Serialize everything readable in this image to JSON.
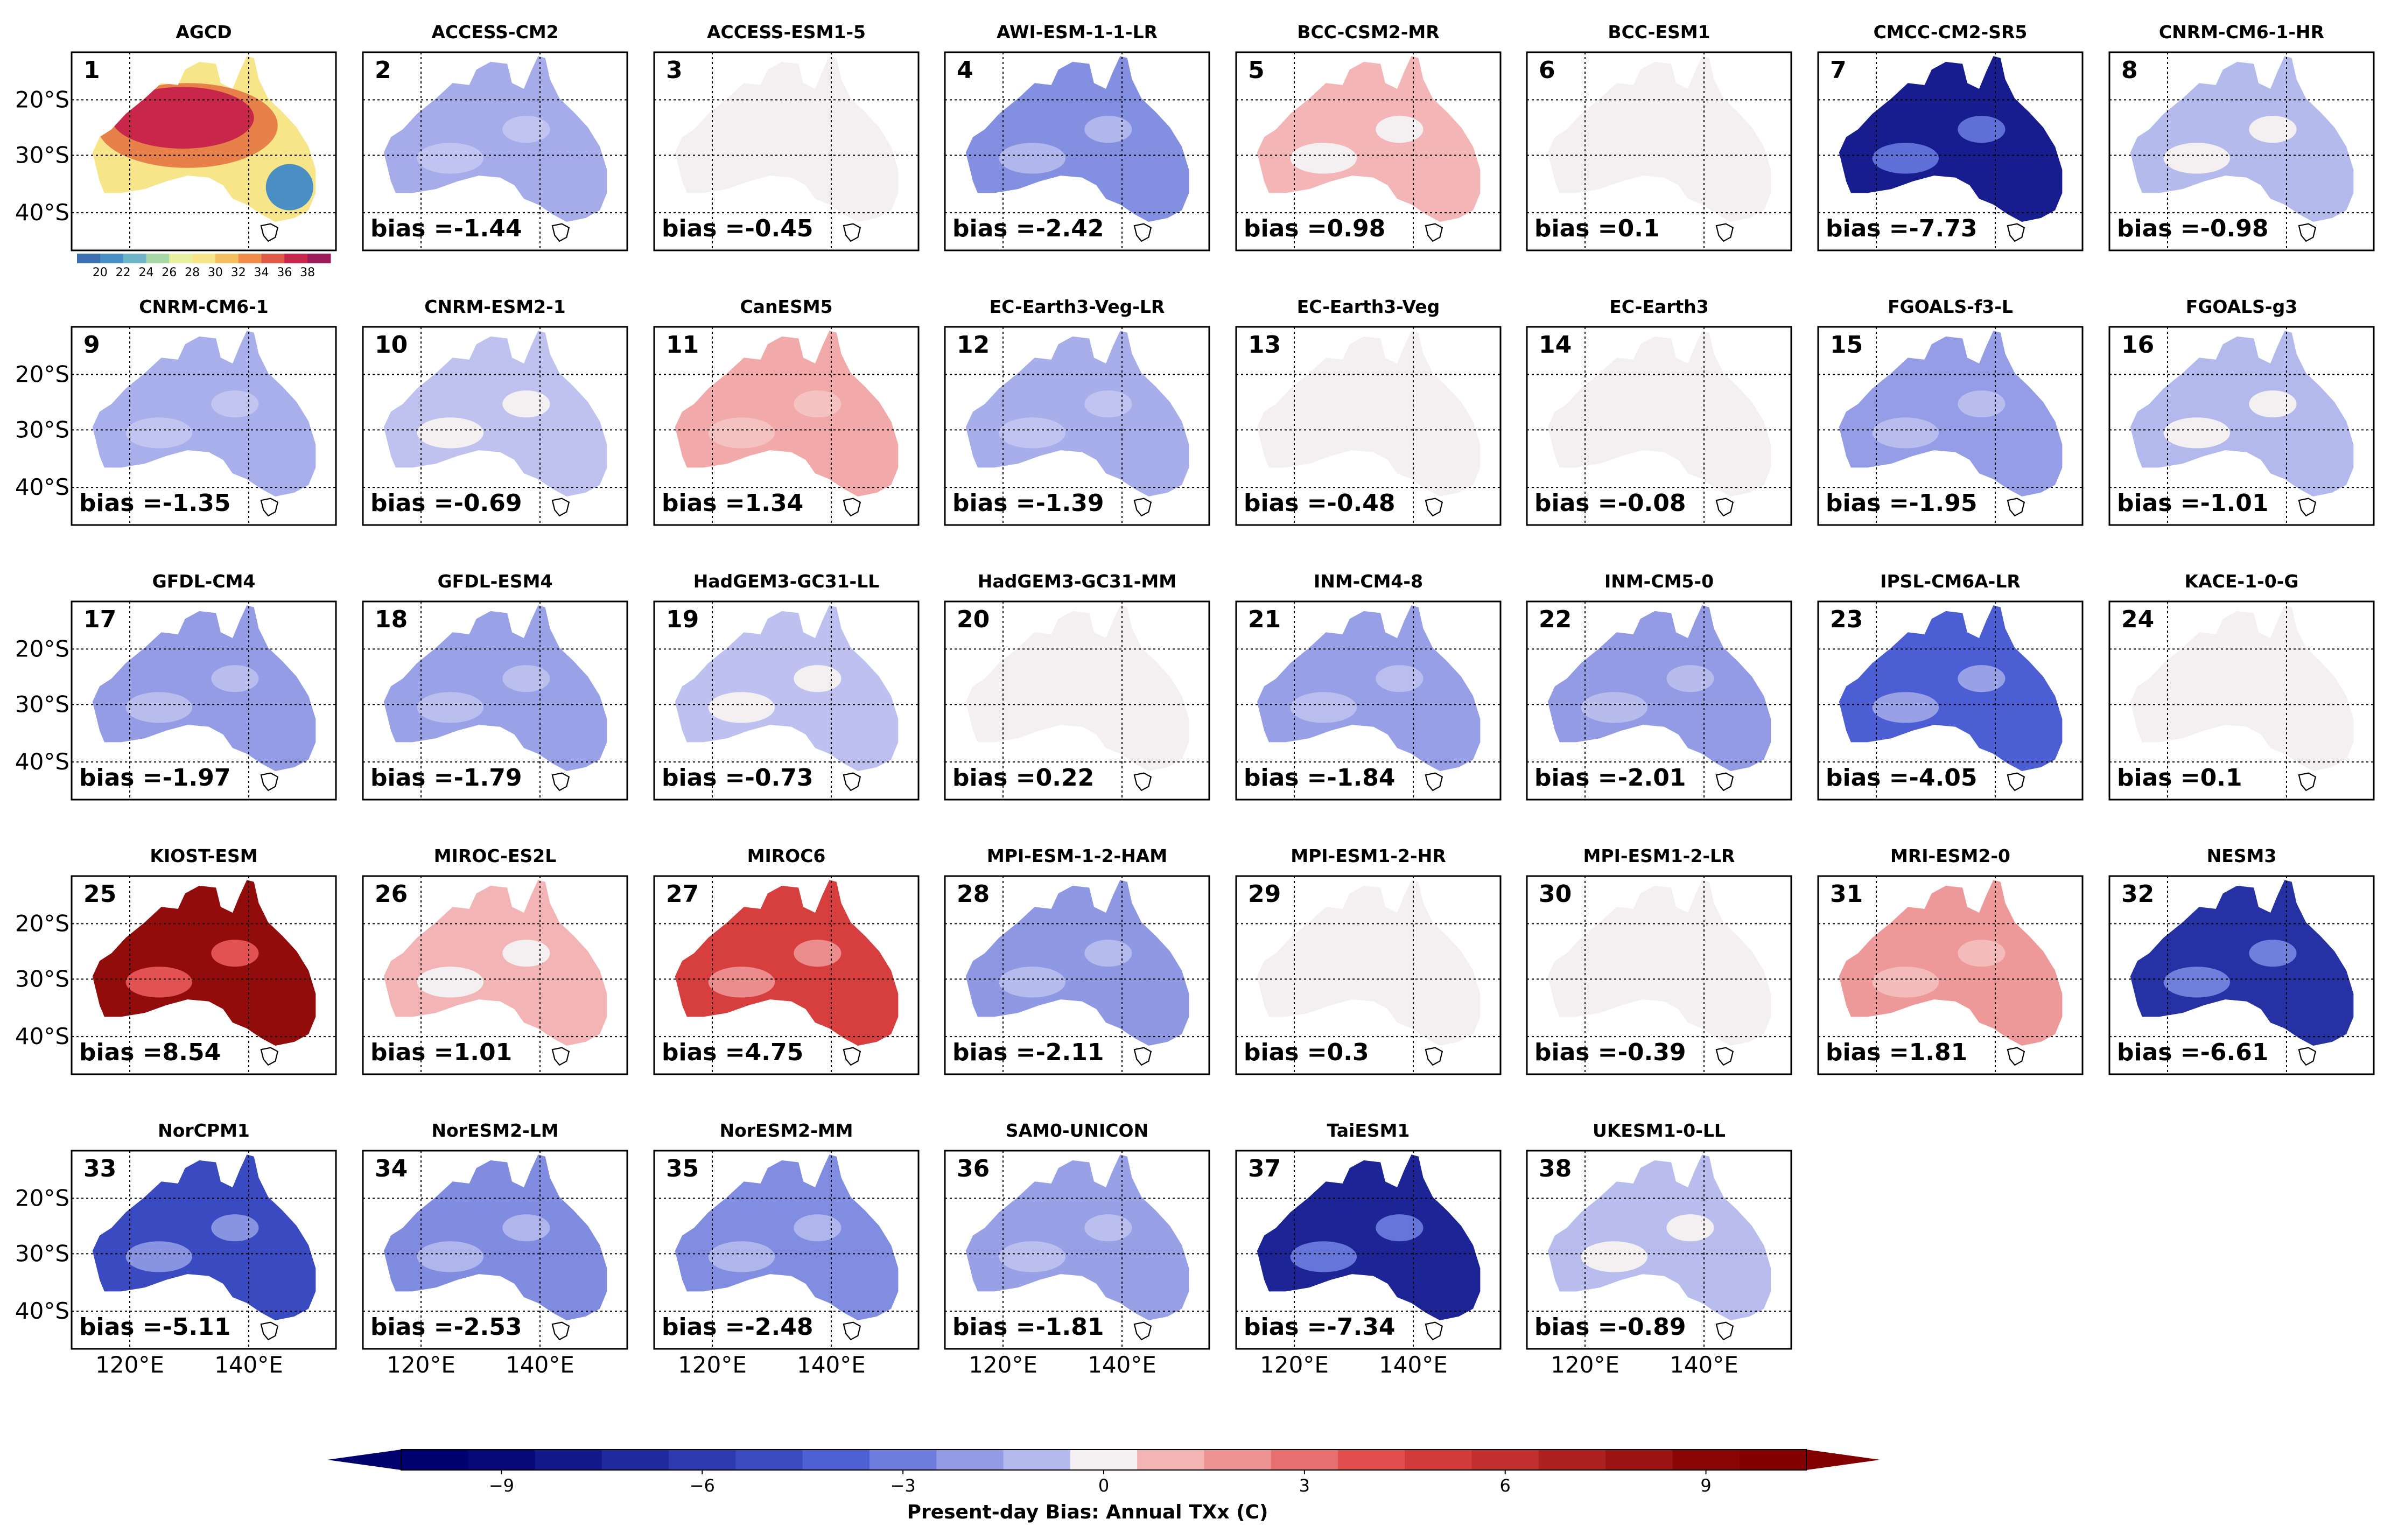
{
  "chart_data": {
    "type": "heatmap",
    "figure_kind": "small-multiple bias maps over Australia",
    "reference": {
      "index": "1",
      "name": "AGCD",
      "colorbar_ticks": [
        "20",
        "22",
        "24",
        "26",
        "28",
        "30",
        "32",
        "34",
        "36",
        "38"
      ],
      "colors": {
        "cool": "#4a8fc4",
        "mid": "#f7e58a",
        "warm": "#c8264a"
      }
    },
    "models": [
      {
        "index": "2",
        "name": "ACCESS-CM2",
        "bias": "bias =-1.44",
        "value": -1.44
      },
      {
        "index": "3",
        "name": "ACCESS-ESM1-5",
        "bias": "bias =-0.45",
        "value": -0.45
      },
      {
        "index": "4",
        "name": "AWI-ESM-1-1-LR",
        "bias": "bias =-2.42",
        "value": -2.42
      },
      {
        "index": "5",
        "name": "BCC-CSM2-MR",
        "bias": "bias =0.98",
        "value": 0.98
      },
      {
        "index": "6",
        "name": "BCC-ESM1",
        "bias": "bias =0.1",
        "value": 0.1
      },
      {
        "index": "7",
        "name": "CMCC-CM2-SR5",
        "bias": "bias =-7.73",
        "value": -7.73
      },
      {
        "index": "8",
        "name": "CNRM-CM6-1-HR",
        "bias": "bias =-0.98",
        "value": -0.98
      },
      {
        "index": "9",
        "name": "CNRM-CM6-1",
        "bias": "bias =-1.35",
        "value": -1.35
      },
      {
        "index": "10",
        "name": "CNRM-ESM2-1",
        "bias": "bias =-0.69",
        "value": -0.69
      },
      {
        "index": "11",
        "name": "CanESM5",
        "bias": "bias =1.34",
        "value": 1.34
      },
      {
        "index": "12",
        "name": "EC-Earth3-Veg-LR",
        "bias": "bias =-1.39",
        "value": -1.39
      },
      {
        "index": "13",
        "name": "EC-Earth3-Veg",
        "bias": "bias =-0.48",
        "value": -0.48
      },
      {
        "index": "14",
        "name": "EC-Earth3",
        "bias": "bias =-0.08",
        "value": -0.08
      },
      {
        "index": "15",
        "name": "FGOALS-f3-L",
        "bias": "bias =-1.95",
        "value": -1.95
      },
      {
        "index": "16",
        "name": "FGOALS-g3",
        "bias": "bias =-1.01",
        "value": -1.01
      },
      {
        "index": "17",
        "name": "GFDL-CM4",
        "bias": "bias =-1.97",
        "value": -1.97
      },
      {
        "index": "18",
        "name": "GFDL-ESM4",
        "bias": "bias =-1.79",
        "value": -1.79
      },
      {
        "index": "19",
        "name": "HadGEM3-GC31-LL",
        "bias": "bias =-0.73",
        "value": -0.73
      },
      {
        "index": "20",
        "name": "HadGEM3-GC31-MM",
        "bias": "bias =0.22",
        "value": 0.22
      },
      {
        "index": "21",
        "name": "INM-CM4-8",
        "bias": "bias =-1.84",
        "value": -1.84
      },
      {
        "index": "22",
        "name": "INM-CM5-0",
        "bias": "bias =-2.01",
        "value": -2.01
      },
      {
        "index": "23",
        "name": "IPSL-CM6A-LR",
        "bias": "bias =-4.05",
        "value": -4.05
      },
      {
        "index": "24",
        "name": "KACE-1-0-G",
        "bias": "bias =0.1",
        "value": 0.1
      },
      {
        "index": "25",
        "name": "KIOST-ESM",
        "bias": "bias =8.54",
        "value": 8.54
      },
      {
        "index": "26",
        "name": "MIROC-ES2L",
        "bias": "bias =1.01",
        "value": 1.01
      },
      {
        "index": "27",
        "name": "MIROC6",
        "bias": "bias =4.75",
        "value": 4.75
      },
      {
        "index": "28",
        "name": "MPI-ESM-1-2-HAM",
        "bias": "bias =-2.11",
        "value": -2.11
      },
      {
        "index": "29",
        "name": "MPI-ESM1-2-HR",
        "bias": "bias =0.3",
        "value": 0.3
      },
      {
        "index": "30",
        "name": "MPI-ESM1-2-LR",
        "bias": "bias =-0.39",
        "value": -0.39
      },
      {
        "index": "31",
        "name": "MRI-ESM2-0",
        "bias": "bias =1.81",
        "value": 1.81
      },
      {
        "index": "32",
        "name": "NESM3",
        "bias": "bias =-6.61",
        "value": -6.61
      },
      {
        "index": "33",
        "name": "NorCPM1",
        "bias": "bias =-5.11",
        "value": -5.11
      },
      {
        "index": "34",
        "name": "NorESM2-LM",
        "bias": "bias =-2.53",
        "value": -2.53
      },
      {
        "index": "35",
        "name": "NorESM2-MM",
        "bias": "bias =-2.48",
        "value": -2.48
      },
      {
        "index": "36",
        "name": "SAM0-UNICON",
        "bias": "bias =-1.81",
        "value": -1.81
      },
      {
        "index": "37",
        "name": "TaiESM1",
        "bias": "bias =-7.34",
        "value": -7.34
      },
      {
        "index": "38",
        "name": "UKESM1-0-LL",
        "bias": "bias =-0.89",
        "value": -0.89
      }
    ],
    "lat_ticks": [
      "20°S",
      "30°S",
      "40°S"
    ],
    "lon_ticks": [
      "120°E",
      "140°E"
    ],
    "colorbar": {
      "label": "Present-day Bias: Annual TXx (C)",
      "ticks": [
        "−9",
        "−6",
        "−3",
        "0",
        "3",
        "6",
        "9"
      ],
      "tick_values": [
        -9,
        -6,
        -3,
        0,
        3,
        6,
        9
      ],
      "range": [
        -10.5,
        10.5
      ],
      "step": 1
    }
  }
}
